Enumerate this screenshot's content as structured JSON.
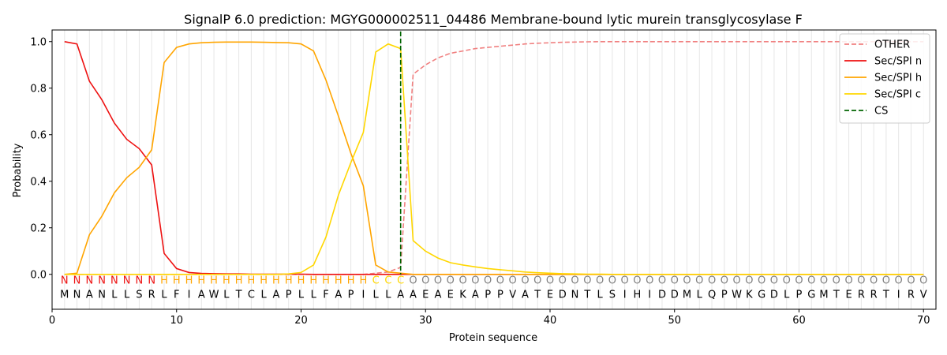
{
  "chart_data": {
    "type": "line",
    "title": "SignalP 6.0 prediction: MGYG000002511_04486 Membrane-bound lytic murein transglycosylase F",
    "xlabel": "Protein sequence",
    "ylabel": "Probability",
    "xlim": [
      0,
      71
    ],
    "ylim": [
      -0.15,
      1.05
    ],
    "xticks": [
      0,
      10,
      20,
      30,
      40,
      50,
      60,
      70
    ],
    "yticks": [
      0.0,
      0.2,
      0.4,
      0.6,
      0.8,
      1.0
    ],
    "grid": "vertical at each residue",
    "legend_position": "top-right",
    "x": [
      1,
      2,
      3,
      4,
      5,
      6,
      7,
      8,
      9,
      10,
      11,
      12,
      13,
      14,
      15,
      16,
      17,
      18,
      19,
      20,
      21,
      22,
      23,
      24,
      25,
      26,
      27,
      28,
      29,
      30,
      31,
      32,
      33,
      34,
      35,
      36,
      37,
      38,
      39,
      40,
      41,
      42,
      43,
      44,
      45,
      46,
      47,
      48,
      49,
      50,
      51,
      52,
      53,
      54,
      55,
      56,
      57,
      58,
      59,
      60,
      61,
      62,
      63,
      64,
      65,
      66,
      67,
      68,
      69,
      70
    ],
    "sequence": [
      "M",
      "N",
      "A",
      "N",
      "L",
      "L",
      "S",
      "R",
      "L",
      "F",
      "I",
      "A",
      "W",
      "L",
      "T",
      "C",
      "L",
      "A",
      "P",
      "L",
      "L",
      "F",
      "A",
      "P",
      "I",
      "L",
      "L",
      "A",
      "A",
      "E",
      "A",
      "E",
      "K",
      "A",
      "P",
      "P",
      "V",
      "A",
      "T",
      "E",
      "D",
      "N",
      "T",
      "L",
      "S",
      "I",
      "H",
      "I",
      "D",
      "D",
      "M",
      "L",
      "Q",
      "P",
      "W",
      "K",
      "G",
      "D",
      "L",
      "P",
      "G",
      "M",
      "T",
      "E",
      "R",
      "R",
      "T",
      "I",
      "R",
      "V"
    ],
    "labels": [
      "N",
      "N",
      "N",
      "N",
      "N",
      "N",
      "N",
      "N",
      "H",
      "H",
      "H",
      "H",
      "H",
      "H",
      "H",
      "H",
      "H",
      "H",
      "H",
      "H",
      "H",
      "H",
      "H",
      "H",
      "H",
      "C",
      "C",
      "C",
      "O",
      "O",
      "O",
      "O",
      "O",
      "O",
      "O",
      "O",
      "O",
      "O",
      "O",
      "O",
      "O",
      "O",
      "O",
      "O",
      "O",
      "O",
      "O",
      "O",
      "O",
      "O",
      "O",
      "O",
      "O",
      "O",
      "O",
      "O",
      "O",
      "O",
      "O",
      "O",
      "O",
      "O",
      "O",
      "O",
      "O",
      "O",
      "O",
      "O",
      "O",
      "O"
    ],
    "label_colors": {
      "N": "#ee1111",
      "H": "#ffa500",
      "C": "#ffd700",
      "O": "#808080"
    },
    "series": [
      {
        "name": "OTHER",
        "color": "#f08080",
        "dash": "dashed",
        "values": [
          0.0,
          0.0,
          0.0,
          0.0,
          0.0,
          0.0,
          0.0,
          0.0,
          0.0,
          0.0,
          0.0,
          0.0,
          0.0,
          0.0,
          0.0,
          0.0,
          0.0,
          0.0,
          0.0,
          0.0,
          0.0,
          0.0,
          0.0,
          0.0,
          0.0,
          0.005,
          0.01,
          0.03,
          0.86,
          0.9,
          0.93,
          0.95,
          0.96,
          0.97,
          0.975,
          0.98,
          0.985,
          0.99,
          0.993,
          0.995,
          0.997,
          0.998,
          0.999,
          1.0,
          1.0,
          1.0,
          1.0,
          1.0,
          1.0,
          1.0,
          1.0,
          1.0,
          1.0,
          1.0,
          1.0,
          1.0,
          1.0,
          1.0,
          1.0,
          1.0,
          1.0,
          1.0,
          1.0,
          1.0,
          1.0,
          1.0,
          1.0,
          1.0,
          1.0,
          1.0
        ]
      },
      {
        "name": "Sec/SPI n",
        "color": "#ee1111",
        "dash": "solid",
        "values": [
          1.0,
          0.99,
          0.83,
          0.75,
          0.65,
          0.58,
          0.54,
          0.47,
          0.09,
          0.025,
          0.008,
          0.004,
          0.003,
          0.002,
          0.002,
          0.001,
          0.001,
          0.001,
          0.001,
          0.001,
          0.0,
          0.0,
          0.0,
          0.0,
          0.0,
          0.0,
          0.0,
          0.0,
          0.0,
          0.0,
          0.0,
          0.0,
          0.0,
          0.0,
          0.0,
          0.0,
          0.0,
          0.0,
          0.0,
          0.0,
          0.0,
          0.0,
          0.0,
          0.0,
          0.0,
          0.0,
          0.0,
          0.0,
          0.0,
          0.0,
          0.0,
          0.0,
          0.0,
          0.0,
          0.0,
          0.0,
          0.0,
          0.0,
          0.0,
          0.0,
          0.0,
          0.0,
          0.0,
          0.0,
          0.0,
          0.0,
          0.0,
          0.0,
          0.0,
          0.0
        ]
      },
      {
        "name": "Sec/SPI h",
        "color": "#ffa500",
        "dash": "solid",
        "values": [
          0.0,
          0.005,
          0.17,
          0.25,
          0.35,
          0.415,
          0.46,
          0.535,
          0.91,
          0.975,
          0.99,
          0.995,
          0.997,
          0.998,
          0.998,
          0.998,
          0.997,
          0.996,
          0.995,
          0.99,
          0.96,
          0.835,
          0.68,
          0.52,
          0.38,
          0.04,
          0.01,
          0.005,
          0.0,
          0.0,
          0.0,
          0.0,
          0.0,
          0.0,
          0.0,
          0.0,
          0.0,
          0.0,
          0.0,
          0.0,
          0.0,
          0.0,
          0.0,
          0.0,
          0.0,
          0.0,
          0.0,
          0.0,
          0.0,
          0.0,
          0.0,
          0.0,
          0.0,
          0.0,
          0.0,
          0.0,
          0.0,
          0.0,
          0.0,
          0.0,
          0.0,
          0.0,
          0.0,
          0.0,
          0.0,
          0.0,
          0.0,
          0.0,
          0.0,
          0.0
        ]
      },
      {
        "name": "Sec/SPI c",
        "color": "#ffd700",
        "dash": "solid",
        "values": [
          0.0,
          0.0,
          0.0,
          0.0,
          0.0,
          0.0,
          0.0,
          0.0,
          0.0,
          0.0,
          0.0,
          0.0,
          0.0,
          0.0,
          0.0,
          0.0,
          0.0,
          0.0,
          0.002,
          0.008,
          0.04,
          0.16,
          0.34,
          0.48,
          0.61,
          0.955,
          0.99,
          0.97,
          0.145,
          0.1,
          0.07,
          0.05,
          0.04,
          0.032,
          0.025,
          0.02,
          0.015,
          0.01,
          0.007,
          0.005,
          0.003,
          0.002,
          0.001,
          0.001,
          0.0,
          0.0,
          0.0,
          0.0,
          0.0,
          0.0,
          0.0,
          0.0,
          0.0,
          0.0,
          0.0,
          0.0,
          0.0,
          0.0,
          0.0,
          0.0,
          0.0,
          0.0,
          0.0,
          0.0,
          0.0,
          0.0,
          0.0,
          0.0,
          0.0,
          0.0
        ]
      }
    ],
    "cs": {
      "name": "CS",
      "x": 28,
      "color": "#006400",
      "dash": "dashed"
    }
  }
}
